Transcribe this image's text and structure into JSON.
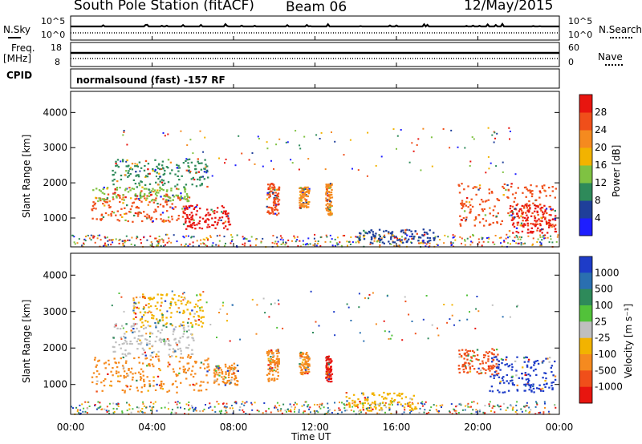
{
  "header": {
    "station": "South Pole Station (fitACF)",
    "beam": "Beam 06",
    "date": "12/May/2015"
  },
  "top_panels": {
    "nsky_label": "N.Sky",
    "nsky_tick_hi": "10^5",
    "nsky_tick_lo": "10^0",
    "nsearch_label": "N.Search",
    "nsearch_tick_hi": "10^5",
    "nsearch_tick_lo": "10^0",
    "freq_label": "Freq.",
    "freq_unit": "[MHz]",
    "freq_tick_hi": "18",
    "freq_tick_lo": "8",
    "nave_label": "Nave",
    "nave_tick_hi": "60",
    "nave_tick_lo": "0",
    "cpid_label": "CPID",
    "cpid_text": "normalsound (fast) -157 RF"
  },
  "chart_data": [
    {
      "type": "heatmap",
      "panel": "power",
      "ylabel": "Slant Range [km]",
      "yticks": [
        "1000",
        "2000",
        "3000",
        "4000"
      ],
      "ylim": [
        180,
        4600
      ],
      "colorbar_label": "Power [dB]",
      "colorbar_ticks": [
        "4",
        "8",
        "12",
        "16",
        "20",
        "24",
        "28"
      ],
      "colorbar_colors": [
        "#1e1eff",
        "#1f3f9a",
        "#2e8a5a",
        "#7fc242",
        "#f2b300",
        "#f58a1f",
        "#f04f1a",
        "#e8150f"
      ],
      "scatter_bands": [
        {
          "x": [
            1.0,
            5.8
          ],
          "y": [
            900,
            1700
          ],
          "color": "#f04f1a"
        },
        {
          "x": [
            1.0,
            5.8
          ],
          "y": [
            1500,
            1900
          ],
          "color": "#7fc242"
        },
        {
          "x": [
            2.0,
            6.8
          ],
          "y": [
            1900,
            2700
          ],
          "color": "#2e8a5a"
        },
        {
          "x": [
            5.5,
            7.8
          ],
          "y": [
            700,
            1400
          ],
          "color": "#e8150f"
        },
        {
          "x": [
            9.6,
            10.2
          ],
          "y": [
            1100,
            2000
          ],
          "color": "#f04f1a"
        },
        {
          "x": [
            11.2,
            11.7
          ],
          "y": [
            1300,
            1900
          ],
          "color": "#f58a1f"
        },
        {
          "x": [
            12.5,
            12.8
          ],
          "y": [
            1100,
            2000
          ],
          "color": "#f58a1f"
        },
        {
          "x": [
            14.0,
            18.0
          ],
          "y": [
            300,
            700
          ],
          "color": "#1f3f9a"
        },
        {
          "x": [
            19.0,
            23.8
          ],
          "y": [
            800,
            2000
          ],
          "color": "#f04f1a"
        },
        {
          "x": [
            21.5,
            23.8
          ],
          "y": [
            600,
            1400
          ],
          "color": "#e8150f"
        }
      ]
    },
    {
      "type": "heatmap",
      "panel": "velocity",
      "ylabel": "Slant Range [km]",
      "yticks": [
        "1000",
        "2000",
        "3000",
        "4000"
      ],
      "ylim": [
        180,
        4600
      ],
      "colorbar_label": "Velocity [m s⁻¹]",
      "colorbar_ticks": [
        "1000",
        "500",
        "100",
        "25",
        "-25",
        "-100",
        "-500",
        "-1000"
      ],
      "colorbar_colors": [
        "#1e3cc8",
        "#2a6fb0",
        "#2e8a5a",
        "#52c23a",
        "#bfbfbf",
        "#f2b300",
        "#f58a1f",
        "#f04f1a",
        "#e8150f"
      ],
      "scatter_bands": [
        {
          "x": [
            1.0,
            6.8
          ],
          "y": [
            800,
            1800
          ],
          "color": "#f58a1f"
        },
        {
          "x": [
            2.0,
            6.0
          ],
          "y": [
            1800,
            2700
          ],
          "color": "#bfbfbf"
        },
        {
          "x": [
            3.0,
            6.5
          ],
          "y": [
            2600,
            3500
          ],
          "color": "#f2b300"
        },
        {
          "x": [
            7.0,
            8.2
          ],
          "y": [
            1000,
            1600
          ],
          "color": "#f58a1f"
        },
        {
          "x": [
            9.6,
            10.2
          ],
          "y": [
            1100,
            2000
          ],
          "color": "#f58a1f"
        },
        {
          "x": [
            11.2,
            11.7
          ],
          "y": [
            1300,
            1900
          ],
          "color": "#f58a1f"
        },
        {
          "x": [
            12.5,
            12.8
          ],
          "y": [
            1100,
            1800
          ],
          "color": "#e8150f"
        },
        {
          "x": [
            13.5,
            17.0
          ],
          "y": [
            300,
            800
          ],
          "color": "#f2b300"
        },
        {
          "x": [
            19.0,
            21.0
          ],
          "y": [
            1300,
            2000
          ],
          "color": "#f04f1a"
        },
        {
          "x": [
            20.5,
            23.8
          ],
          "y": [
            800,
            1800
          ],
          "color": "#1e3cc8"
        }
      ]
    }
  ],
  "time_axis": {
    "label": "Time UT",
    "ticks": [
      "00:00",
      "04:00",
      "08:00",
      "12:00",
      "16:00",
      "20:00",
      "00:00"
    ]
  }
}
